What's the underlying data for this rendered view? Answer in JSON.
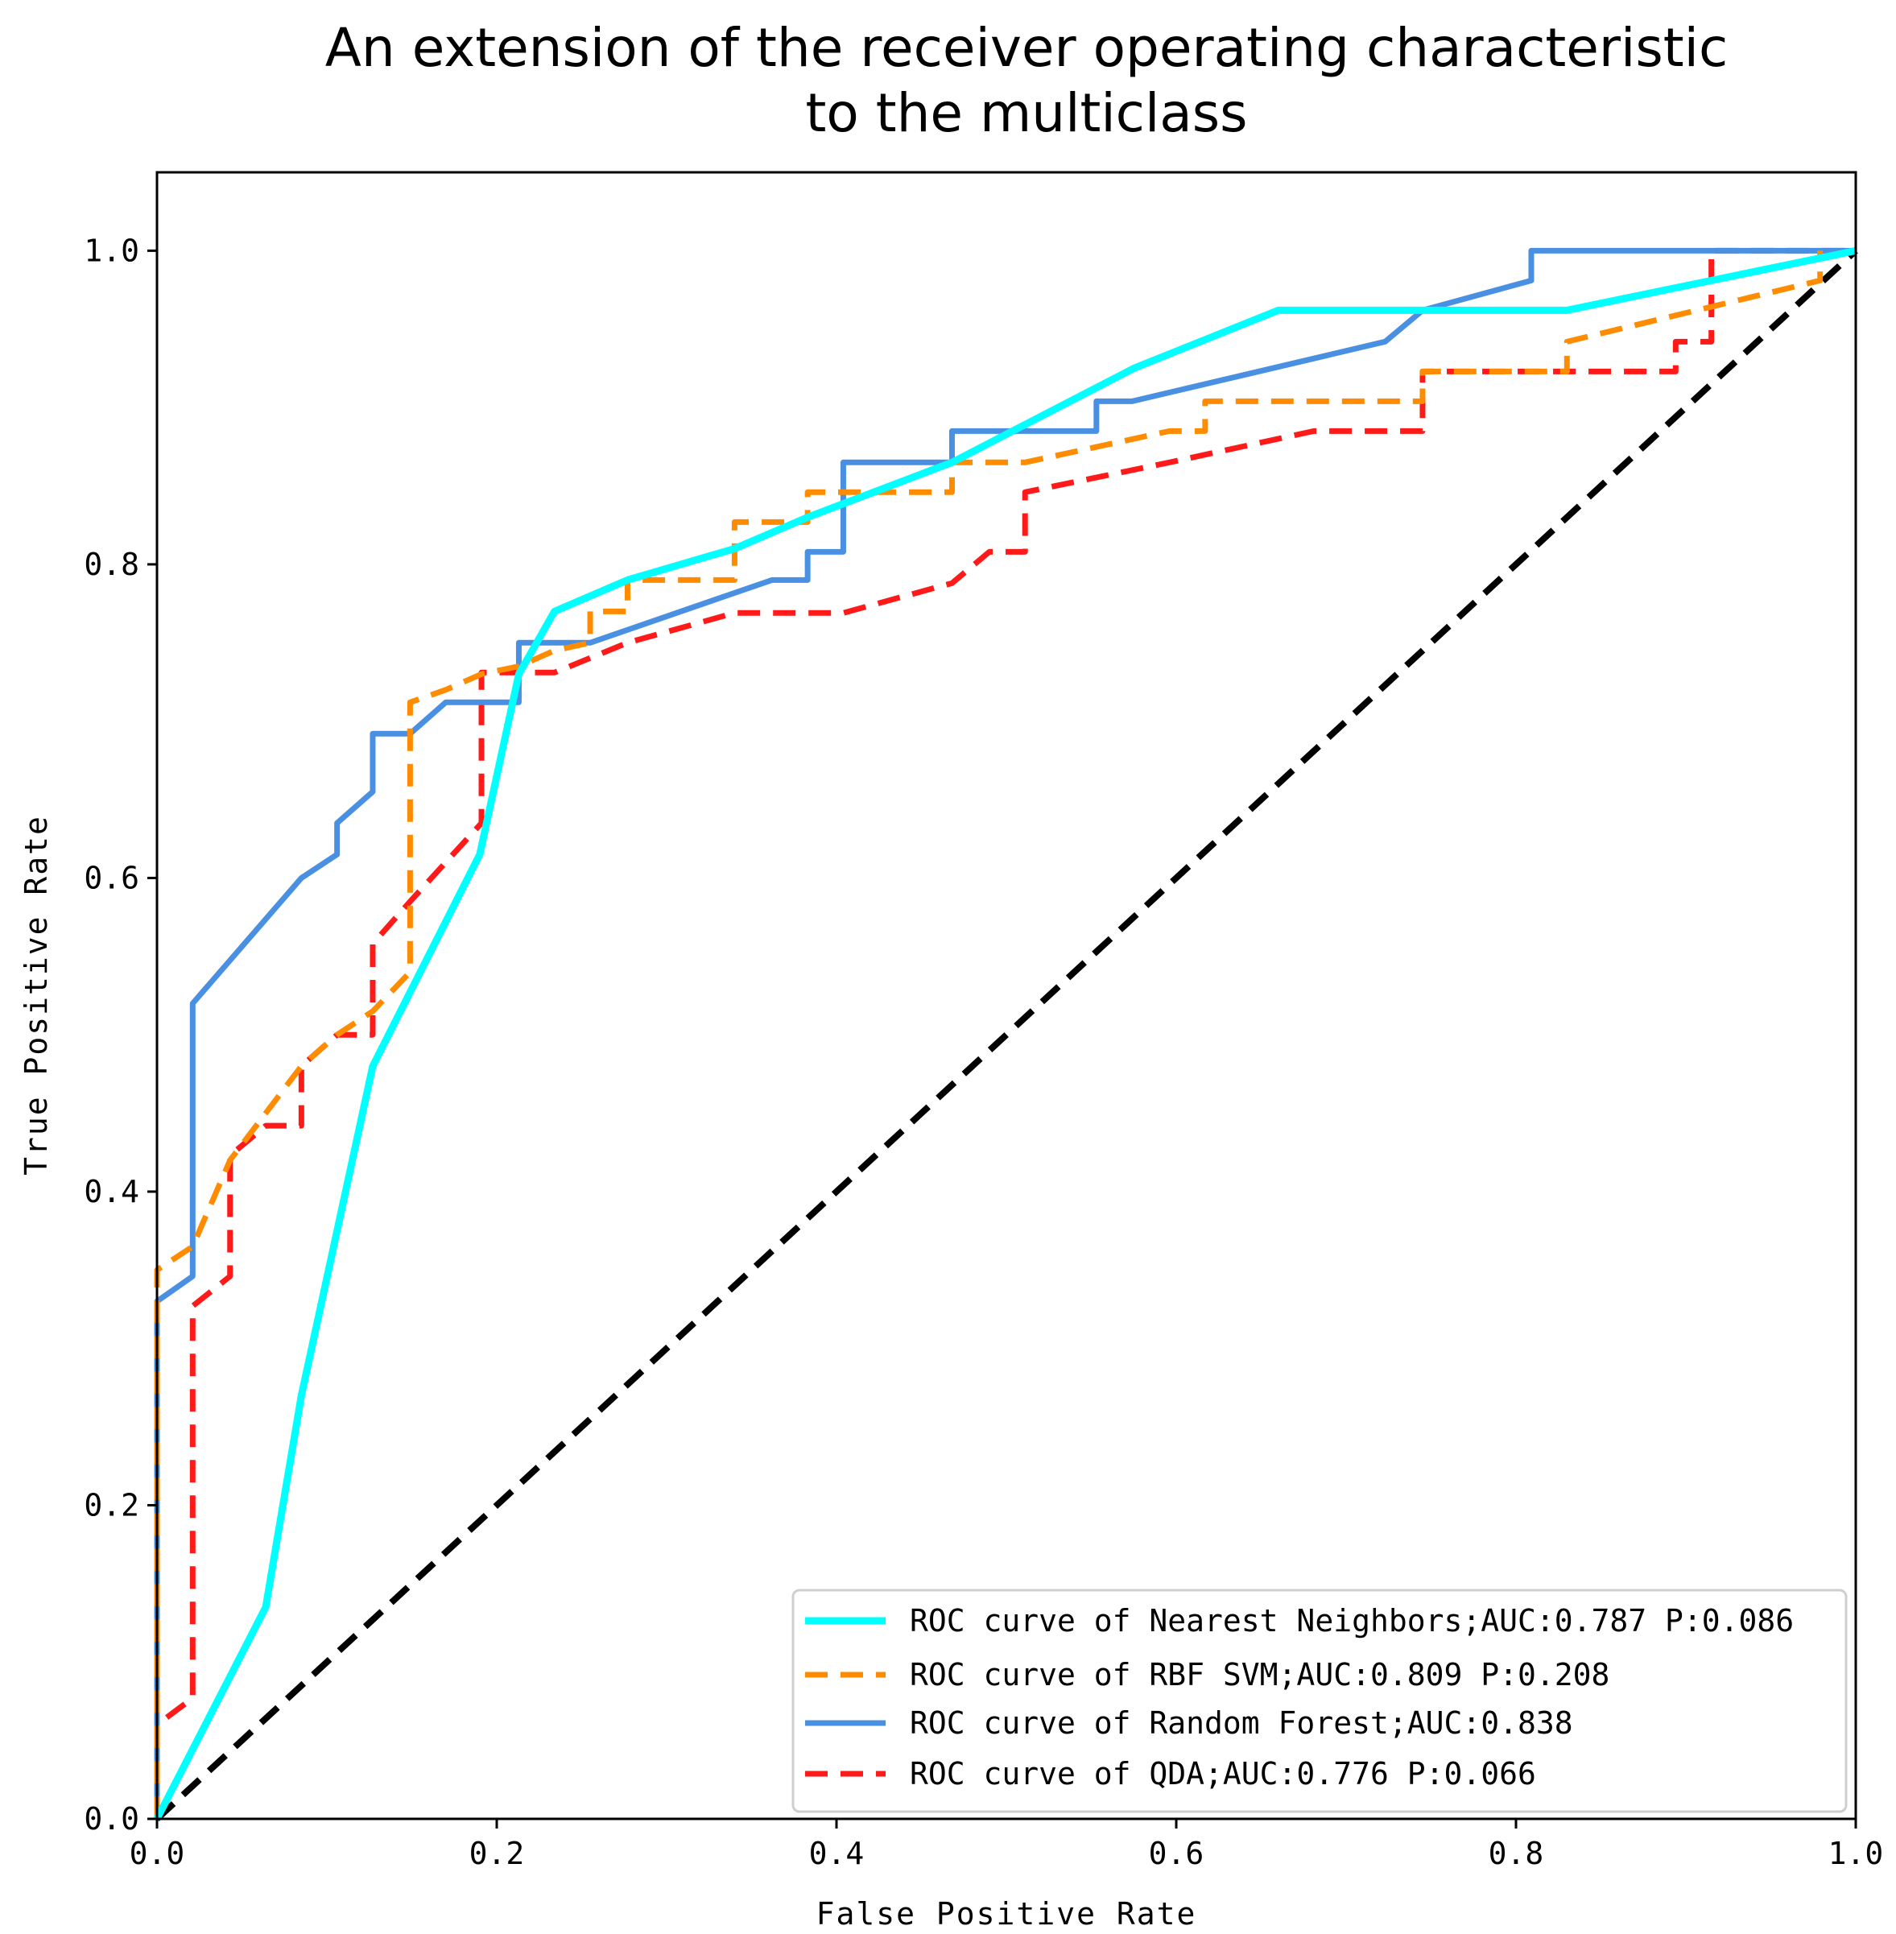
{
  "chart_data": {
    "type": "line",
    "title_lines": [
      "An extension of the receiver operating characteristic",
      "to the multiclass"
    ],
    "xlabel": "False Positive Rate",
    "ylabel": "True Positive Rate",
    "xlim": [
      0.0,
      1.0
    ],
    "ylim": [
      0.0,
      1.05
    ],
    "xticks": [
      0.0,
      0.2,
      0.4,
      0.6,
      0.8,
      1.0
    ],
    "xtick_labels": [
      "0.0",
      "0.2",
      "0.4",
      "0.6",
      "0.8",
      "1.0"
    ],
    "yticks": [
      0.0,
      0.2,
      0.4,
      0.6,
      0.8,
      1.0
    ],
    "ytick_labels": [
      "0.0",
      "0.2",
      "0.4",
      "0.6",
      "0.8",
      "1.0"
    ],
    "grid": false,
    "legend_position": "lower-right",
    "series": [
      {
        "name": "ROC curve of Nearest Neighbors;AUC:0.787 P:0.086",
        "color": "#00FFFF",
        "dash": "solid",
        "x": [
          0.0,
          0.064,
          0.085,
          0.127,
          0.19,
          0.213,
          0.234,
          0.277,
          0.34,
          0.383,
          0.468,
          0.575,
          0.66,
          0.83,
          0.915,
          1.0
        ],
        "y": [
          0.0,
          0.135,
          0.27,
          0.48,
          0.615,
          0.73,
          0.77,
          0.79,
          0.81,
          0.83,
          0.865,
          0.925,
          0.962,
          0.962,
          0.981,
          1.0
        ]
      },
      {
        "name": "ROC curve of RBF SVM;AUC:0.809 P:0.208",
        "color": "#FF8C00",
        "dash": "dashed",
        "x": [
          0.0,
          0.0,
          0.021,
          0.043,
          0.064,
          0.085,
          0.106,
          0.127,
          0.149,
          0.149,
          0.17,
          0.191,
          0.213,
          0.234,
          0.255,
          0.255,
          0.277,
          0.277,
          0.34,
          0.34,
          0.383,
          0.383,
          0.468,
          0.468,
          0.511,
          0.596,
          0.617,
          0.617,
          0.745,
          0.745,
          0.83,
          0.83,
          0.979,
          0.979
        ],
        "y": [
          0.0,
          0.35,
          0.365,
          0.42,
          0.45,
          0.48,
          0.5,
          0.515,
          0.54,
          0.712,
          0.72,
          0.73,
          0.735,
          0.745,
          0.75,
          0.77,
          0.77,
          0.79,
          0.79,
          0.827,
          0.827,
          0.846,
          0.846,
          0.865,
          0.865,
          0.885,
          0.885,
          0.904,
          0.904,
          0.923,
          0.923,
          0.942,
          0.981,
          1.0
        ]
      },
      {
        "name": "ROC curve of Random Forest;AUC:0.838",
        "color": "#4A90E2",
        "dash": "solid",
        "x": [
          0.0,
          0.0,
          0.021,
          0.021,
          0.085,
          0.106,
          0.106,
          0.127,
          0.127,
          0.149,
          0.17,
          0.213,
          0.213,
          0.255,
          0.362,
          0.383,
          0.383,
          0.404,
          0.404,
          0.468,
          0.468,
          0.553,
          0.553,
          0.574,
          0.723,
          0.745,
          0.809,
          0.809,
          1.0
        ],
        "y": [
          0.0,
          0.33,
          0.346,
          0.52,
          0.6,
          0.615,
          0.635,
          0.655,
          0.692,
          0.692,
          0.712,
          0.712,
          0.75,
          0.75,
          0.79,
          0.79,
          0.808,
          0.808,
          0.865,
          0.865,
          0.885,
          0.885,
          0.904,
          0.904,
          0.942,
          0.962,
          0.981,
          1.0,
          1.0
        ]
      },
      {
        "name": "ROC curve of QDA;AUC:0.776 P:0.066",
        "color": "#FF1A1A",
        "dash": "dashed",
        "x": [
          0.0,
          0.0,
          0.021,
          0.021,
          0.043,
          0.043,
          0.064,
          0.085,
          0.085,
          0.106,
          0.127,
          0.127,
          0.149,
          0.191,
          0.191,
          0.213,
          0.234,
          0.277,
          0.34,
          0.404,
          0.468,
          0.49,
          0.511,
          0.511,
          0.596,
          0.681,
          0.745,
          0.745,
          0.894,
          0.894,
          0.915,
          0.915,
          1.0
        ],
        "y": [
          0.0,
          0.06,
          0.077,
          0.327,
          0.346,
          0.423,
          0.442,
          0.442,
          0.48,
          0.5,
          0.5,
          0.558,
          0.585,
          0.635,
          0.731,
          0.731,
          0.731,
          0.75,
          0.769,
          0.769,
          0.788,
          0.808,
          0.808,
          0.846,
          0.865,
          0.885,
          0.885,
          0.923,
          0.923,
          0.942,
          0.942,
          1.0,
          1.0
        ]
      },
      {
        "name": "",
        "color": "#000000",
        "dash": "dashed",
        "x": [
          0.0,
          1.0
        ],
        "y": [
          0.0,
          1.0
        ]
      }
    ]
  }
}
